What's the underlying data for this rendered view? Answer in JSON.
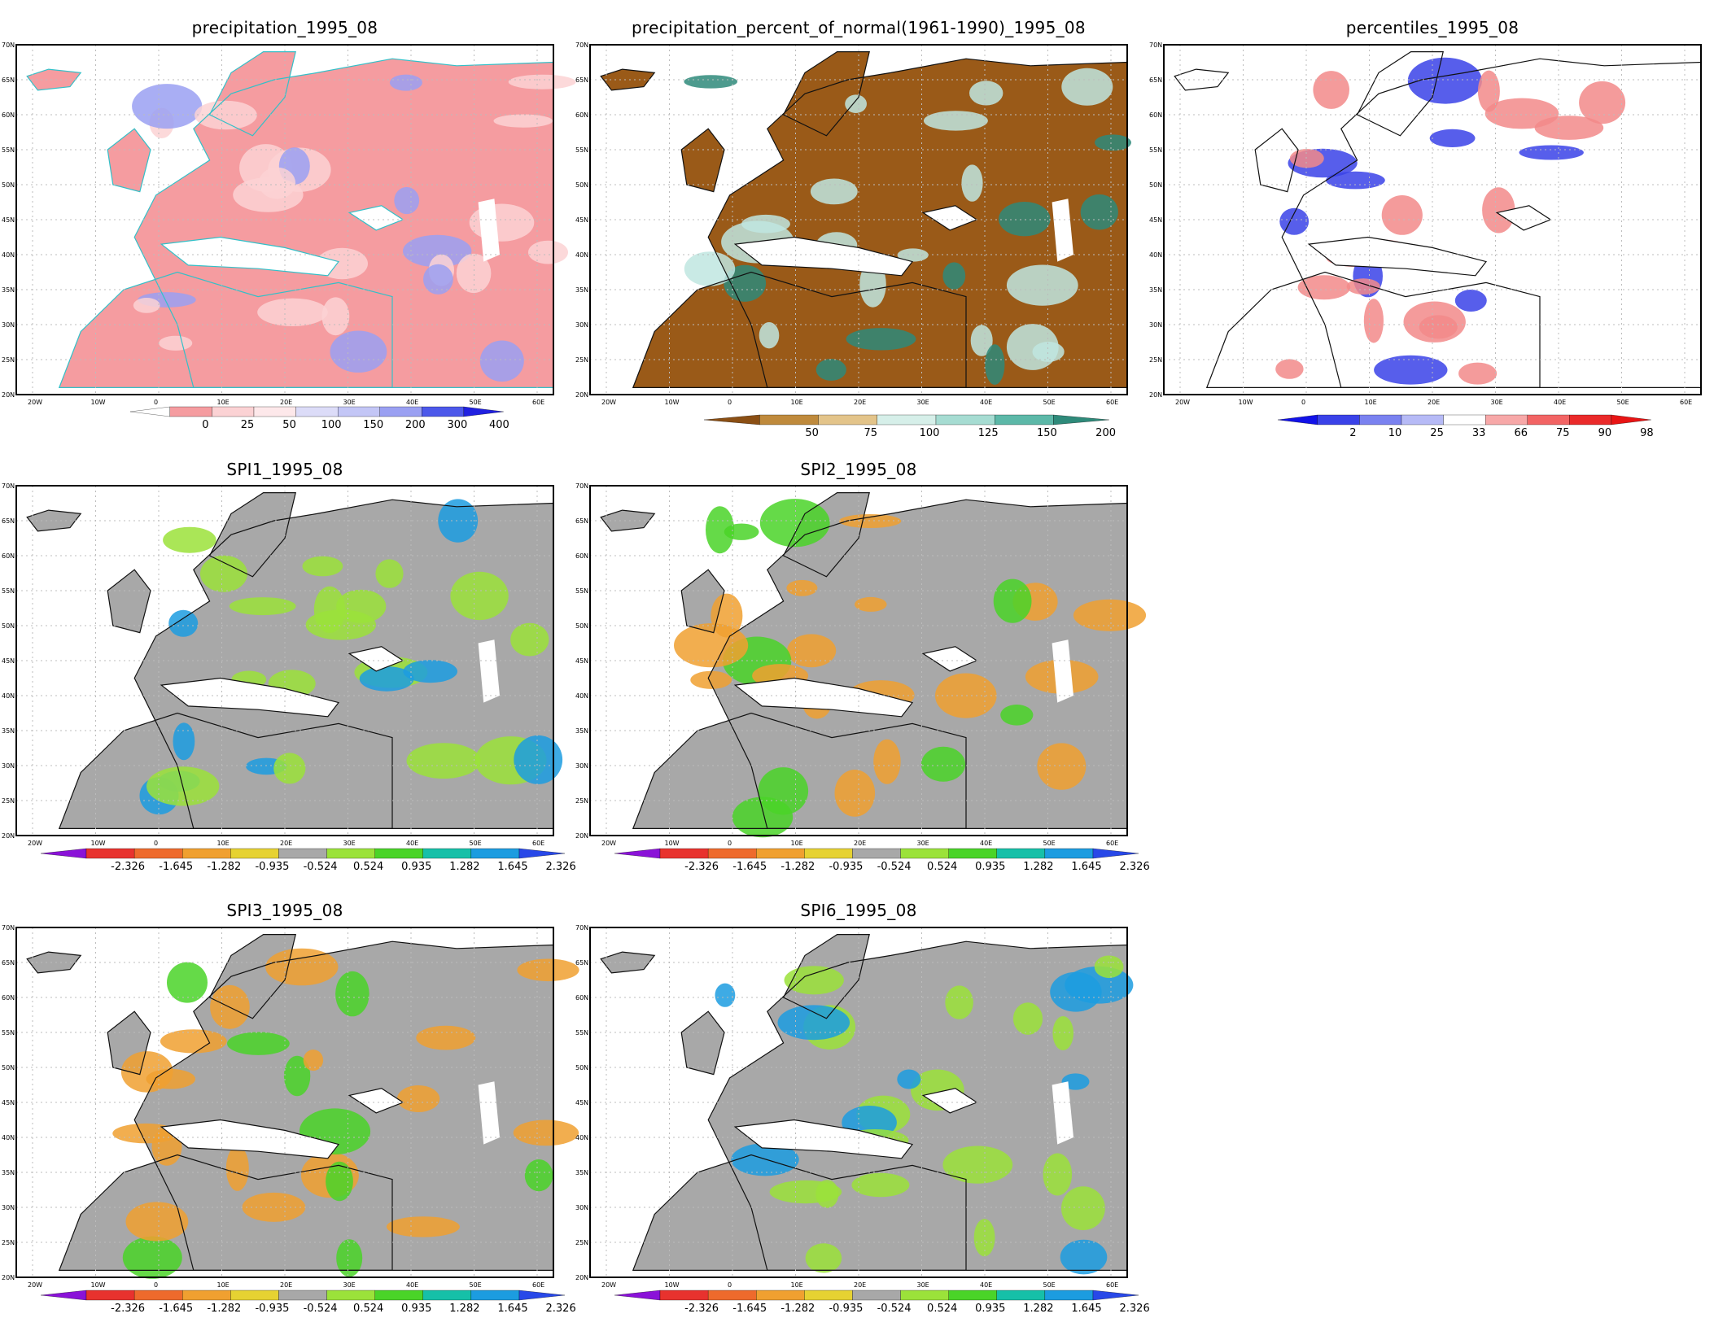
{
  "axes": {
    "lat_labels": [
      "70N",
      "65N",
      "60N",
      "55N",
      "50N",
      "45N",
      "40N",
      "35N",
      "30N",
      "25N",
      "20N"
    ],
    "lon_labels": [
      "20W",
      "10W",
      "0",
      "10E",
      "20E",
      "30E",
      "40E",
      "50E",
      "60E"
    ]
  },
  "spi_scale": {
    "labels": [
      "-2.326",
      "-1.645",
      "-1.282",
      "-0.935",
      "-0.524",
      "0.524",
      "0.935",
      "1.282",
      "1.645",
      "2.326"
    ],
    "colors": [
      "#8a12d8",
      "#e8322e",
      "#ee6a2c",
      "#f0a030",
      "#e6d232",
      "#a8a8a8",
      "#9be23a",
      "#4ad428",
      "#16c0a8",
      "#1c9ce0",
      "#2848e8"
    ]
  },
  "panels": [
    {
      "id": "precipitation",
      "title": "precipitation_1995_08",
      "palette": {
        "bg": "#f59ca0",
        "mid": "#fbd2d4",
        "wet": "#9aa0f2",
        "coast": "#33c0c8"
      },
      "legend": {
        "labels": [
          "0",
          "25",
          "50",
          "100",
          "150",
          "200",
          "300",
          "400"
        ],
        "colors": [
          "#ffffff",
          "#f59ca0",
          "#fbd2d4",
          "#fde8ea",
          "#dcdcf8",
          "#c3c6f6",
          "#9aa0f2",
          "#4c58ea",
          "#2020e0"
        ]
      }
    },
    {
      "id": "percent_of_normal",
      "title": "precipitation_percent_of_normal(1961-1990)_1995_08",
      "palette": {
        "bg": "#9a5a18",
        "mid": "#bfe6e0",
        "wet": "#2e8a7a",
        "coast": "#111111"
      },
      "legend": {
        "labels": [
          "50",
          "75",
          "100",
          "125",
          "150",
          "200"
        ],
        "colors": [
          "#8b4f14",
          "#bf8a3c",
          "#e3c48a",
          "#d6efe9",
          "#a6dcd2",
          "#5cb8a8",
          "#2e8a7a"
        ]
      }
    },
    {
      "id": "percentiles",
      "title": "percentiles_1995_08",
      "palette": {
        "bg": "#ffffff",
        "mid": "#f28a8a",
        "wet": "#3a42e8",
        "coast": "#111111"
      },
      "legend": {
        "labels": [
          "2",
          "10",
          "25",
          "33",
          "66",
          "75",
          "90",
          "98"
        ],
        "colors": [
          "#1212e8",
          "#3a42e8",
          "#7a82f0",
          "#b6baf6",
          "#ffffff",
          "#f7a8a8",
          "#f26464",
          "#ea2a2a",
          "#e81414"
        ]
      }
    },
    {
      "id": "spi1",
      "title": "SPI1_1995_08",
      "palette": {
        "bg": "#a8a8a8",
        "mid": "#9be23a",
        "wet": "#1c9ce0",
        "coast": "#111111"
      }
    },
    {
      "id": "spi2",
      "title": "SPI2_1995_08",
      "palette": {
        "bg": "#a8a8a8",
        "mid": "#f0a030",
        "wet": "#4ad428",
        "coast": "#111111"
      }
    },
    {
      "id": "spi3",
      "title": "SPI3_1995_08",
      "palette": {
        "bg": "#a8a8a8",
        "mid": "#f0a030",
        "wet": "#4ad428",
        "coast": "#111111"
      }
    },
    {
      "id": "spi6",
      "title": "SPI6_1995_08",
      "palette": {
        "bg": "#a8a8a8",
        "mid": "#9be23a",
        "wet": "#1c9ce0",
        "coast": "#111111"
      }
    }
  ]
}
